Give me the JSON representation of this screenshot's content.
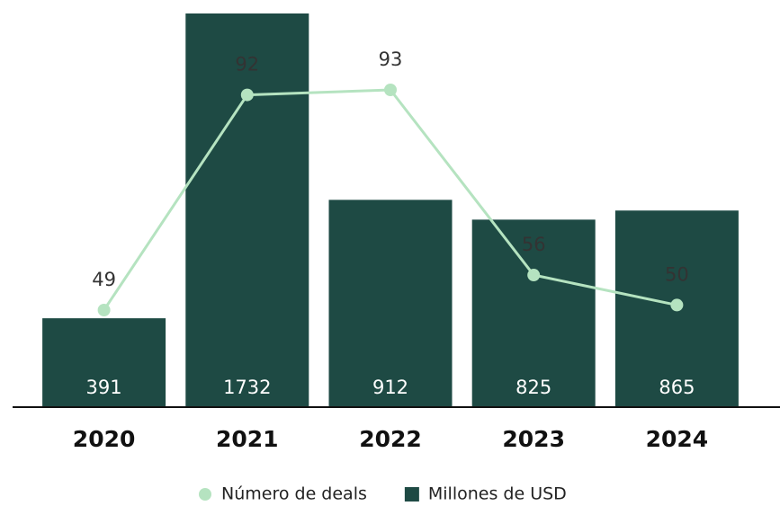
{
  "chart_data": {
    "type": "bar",
    "categories": [
      "2020",
      "2021",
      "2022",
      "2023",
      "2024"
    ],
    "series": [
      {
        "name": "Número de deals",
        "type": "line",
        "color": "#b5e3c0",
        "values": [
          49,
          92,
          93,
          56,
          50
        ]
      },
      {
        "name": "Millones de USD",
        "type": "bar",
        "color": "#1e4a44",
        "values": [
          391,
          1732,
          912,
          825,
          865
        ]
      }
    ],
    "legend": "bottom"
  }
}
